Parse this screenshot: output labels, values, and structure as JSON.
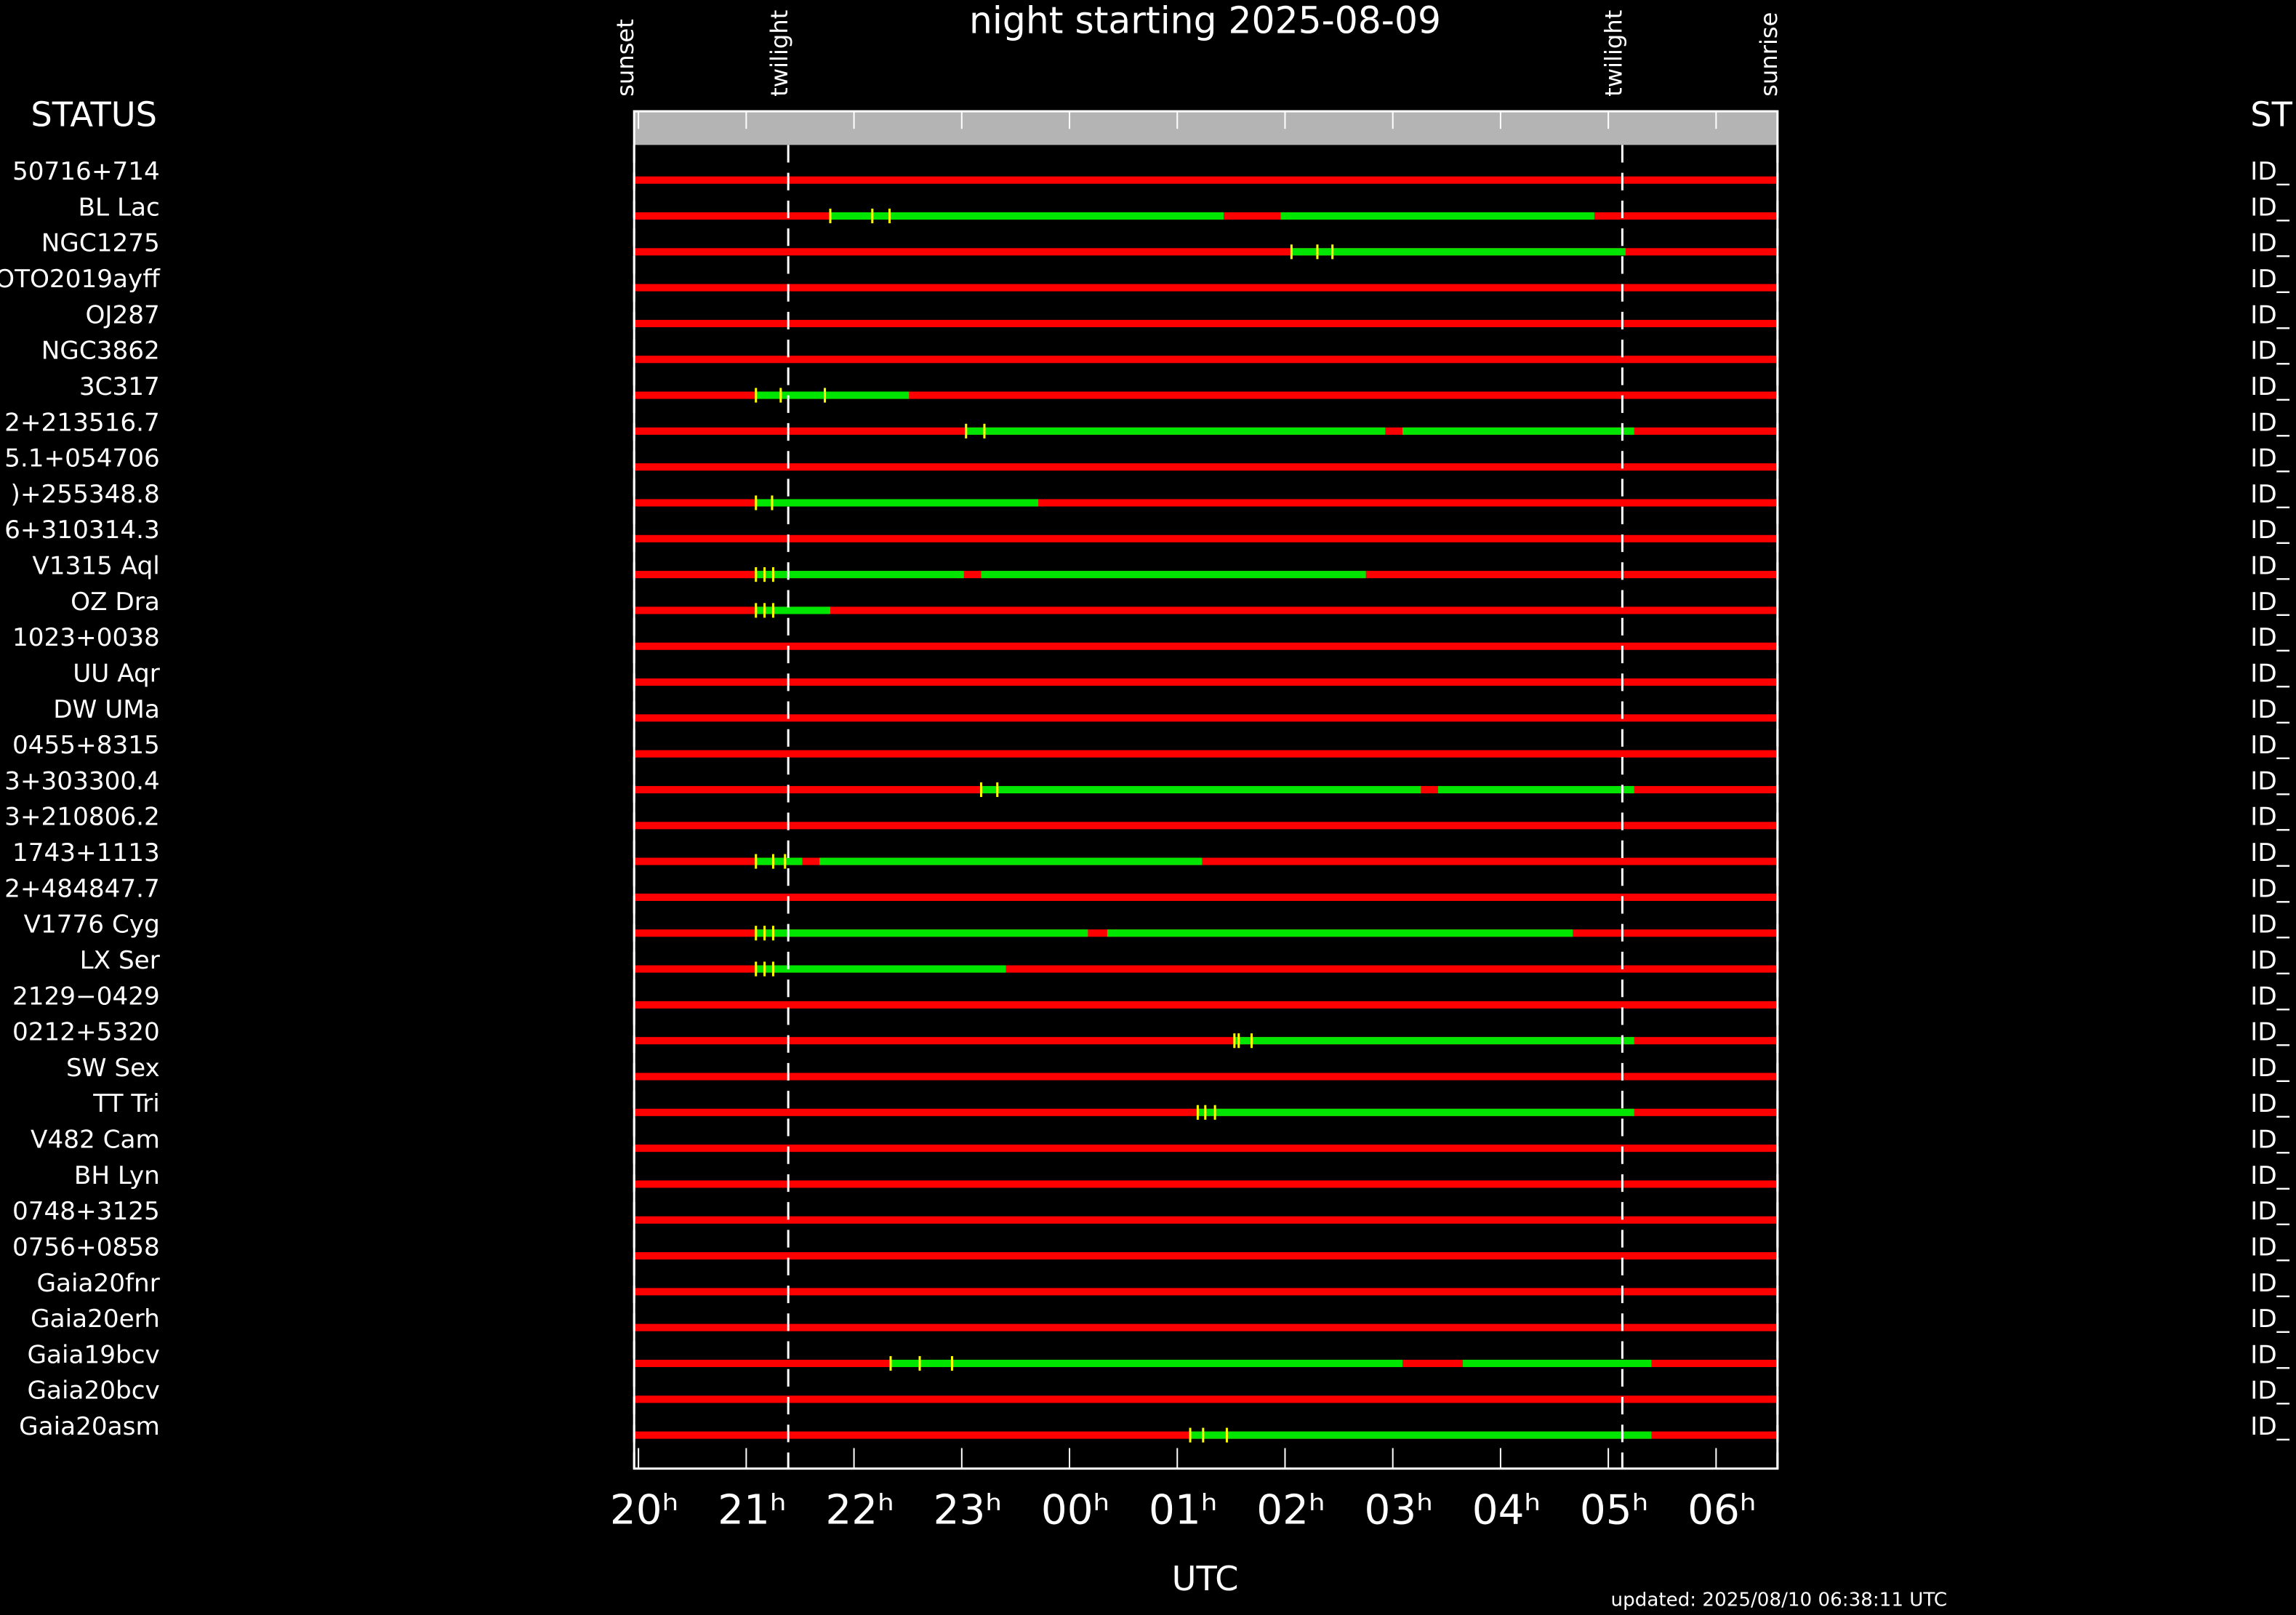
{
  "chart_data": {
    "type": "timeline",
    "title": "night starting 2025-08-09",
    "xlabel": "UTC",
    "note": "updated: 2025/08/10 06:38:11 UTC",
    "left_header": "STATUS",
    "right_header": "ST",
    "xlim": [
      19.96,
      30.57
    ],
    "xticks": [
      {
        "value": 20,
        "label": "20ʰ"
      },
      {
        "value": 21,
        "label": "21ʰ"
      },
      {
        "value": 22,
        "label": "22ʰ"
      },
      {
        "value": 23,
        "label": "23ʰ"
      },
      {
        "value": 24,
        "label": "00ʰ"
      },
      {
        "value": 25,
        "label": "01ʰ"
      },
      {
        "value": 26,
        "label": "02ʰ"
      },
      {
        "value": 27,
        "label": "03ʰ"
      },
      {
        "value": 28,
        "label": "04ʰ"
      },
      {
        "value": 29,
        "label": "05ʰ"
      },
      {
        "value": 30,
        "label": "06ʰ"
      }
    ],
    "events": [
      {
        "label": "sunset",
        "x": 19.96
      },
      {
        "label": "twilight",
        "x": 21.39
      },
      {
        "label": "twilight",
        "x": 29.13
      },
      {
        "label": "sunrise",
        "x": 30.57
      }
    ],
    "colors": {
      "unobservable": "#ff0000",
      "observable": "#00e600",
      "marker": "#ffff00",
      "header_bar": "#b4b4b4"
    },
    "rows": [
      {
        "name": "50716+714",
        "status": "ID_",
        "segments": [],
        "markers": []
      },
      {
        "name": "BL Lac",
        "status": "ID_",
        "segments": [
          [
            21.78,
            25.43
          ],
          [
            25.96,
            28.87
          ]
        ],
        "markers": [
          21.78,
          22.17,
          22.33
        ]
      },
      {
        "name": "NGC1275",
        "status": "ID_",
        "segments": [
          [
            26.06,
            29.16
          ]
        ],
        "markers": [
          26.06,
          26.3,
          26.44
        ]
      },
      {
        "name": "OTO2019ayff",
        "status": "ID_",
        "segments": [],
        "markers": []
      },
      {
        "name": "OJ287",
        "status": "ID_",
        "segments": [],
        "markers": []
      },
      {
        "name": "NGC3862",
        "status": "ID_",
        "segments": [],
        "markers": []
      },
      {
        "name": "3C317",
        "status": "ID_",
        "segments": [
          [
            21.09,
            22.51
          ]
        ],
        "markers": [
          21.09,
          21.32,
          21.73
        ]
      },
      {
        "name": "2+213516.7",
        "status": "ID_",
        "segments": [
          [
            23.04,
            26.93
          ],
          [
            27.09,
            29.24
          ]
        ],
        "markers": [
          23.04,
          23.21
        ]
      },
      {
        "name": "5.1+054706",
        "status": "ID_",
        "segments": [],
        "markers": []
      },
      {
        "name": ")+255348.8",
        "status": "ID_",
        "segments": [
          [
            21.09,
            23.71
          ]
        ],
        "markers": [
          21.09,
          21.24
        ]
      },
      {
        "name": "6+310314.3",
        "status": "ID_",
        "segments": [],
        "markers": []
      },
      {
        "name": "V1315 Aql",
        "status": "ID_",
        "segments": [
          [
            21.09,
            23.02
          ],
          [
            23.18,
            26.75
          ]
        ],
        "markers": [
          21.09,
          21.17,
          21.25
        ]
      },
      {
        "name": "OZ Dra",
        "status": "ID_",
        "segments": [
          [
            21.09,
            21.78
          ]
        ],
        "markers": [
          21.09,
          21.17,
          21.25
        ]
      },
      {
        "name": "1023+0038",
        "status": "ID_",
        "segments": [],
        "markers": []
      },
      {
        "name": "UU Aqr",
        "status": "ID_",
        "segments": [],
        "markers": []
      },
      {
        "name": "DW UMa",
        "status": "ID_",
        "segments": [],
        "markers": []
      },
      {
        "name": "0455+8315",
        "status": "ID_",
        "segments": [],
        "markers": []
      },
      {
        "name": "3+303300.4",
        "status": "ID_",
        "segments": [
          [
            23.18,
            27.26
          ],
          [
            27.42,
            29.24
          ]
        ],
        "markers": [
          23.18,
          23.33
        ]
      },
      {
        "name": "3+210806.2",
        "status": "ID_",
        "segments": [],
        "markers": []
      },
      {
        "name": "1743+1113",
        "status": "ID_",
        "segments": [
          [
            21.09,
            21.52
          ],
          [
            21.68,
            25.23
          ]
        ],
        "markers": [
          21.09,
          21.25,
          21.36
        ]
      },
      {
        "name": "2+484847.7",
        "status": "ID_",
        "segments": [],
        "markers": []
      },
      {
        "name": "V1776 Cyg",
        "status": "ID_",
        "segments": [
          [
            21.09,
            24.17
          ],
          [
            24.35,
            28.67
          ]
        ],
        "markers": [
          21.09,
          21.17,
          21.25
        ]
      },
      {
        "name": "LX Ser",
        "status": "ID_",
        "segments": [
          [
            21.09,
            23.41
          ]
        ],
        "markers": [
          21.09,
          21.17,
          21.25
        ]
      },
      {
        "name": "2129−0429",
        "status": "ID_",
        "segments": [],
        "markers": []
      },
      {
        "name": "0212+5320",
        "status": "ID_",
        "segments": [
          [
            25.53,
            29.24
          ]
        ],
        "markers": [
          25.53,
          25.57,
          25.69
        ]
      },
      {
        "name": "SW Sex",
        "status": "ID_",
        "segments": [],
        "markers": []
      },
      {
        "name": "TT Tri",
        "status": "ID_",
        "segments": [
          [
            25.19,
            29.24
          ]
        ],
        "markers": [
          25.19,
          25.26,
          25.35
        ]
      },
      {
        "name": "V482 Cam",
        "status": "ID_",
        "segments": [],
        "markers": []
      },
      {
        "name": "BH Lyn",
        "status": "ID_",
        "segments": [],
        "markers": []
      },
      {
        "name": "0748+3125",
        "status": "ID_",
        "segments": [],
        "markers": []
      },
      {
        "name": "0756+0858",
        "status": "ID_",
        "segments": [],
        "markers": []
      },
      {
        "name": "Gaia20fnr",
        "status": "ID_",
        "segments": [],
        "markers": []
      },
      {
        "name": "Gaia20erh",
        "status": "ID_",
        "segments": [],
        "markers": []
      },
      {
        "name": "Gaia19bcv",
        "status": "ID_",
        "segments": [
          [
            22.34,
            27.09
          ],
          [
            27.65,
            29.4
          ]
        ],
        "markers": [
          22.34,
          22.61,
          22.91
        ]
      },
      {
        "name": "Gaia20bcv",
        "status": "ID_",
        "segments": [],
        "markers": []
      },
      {
        "name": "Gaia20asm",
        "status": "ID_",
        "segments": [
          [
            25.12,
            29.4
          ]
        ],
        "markers": [
          25.12,
          25.24,
          25.46
        ]
      }
    ]
  }
}
